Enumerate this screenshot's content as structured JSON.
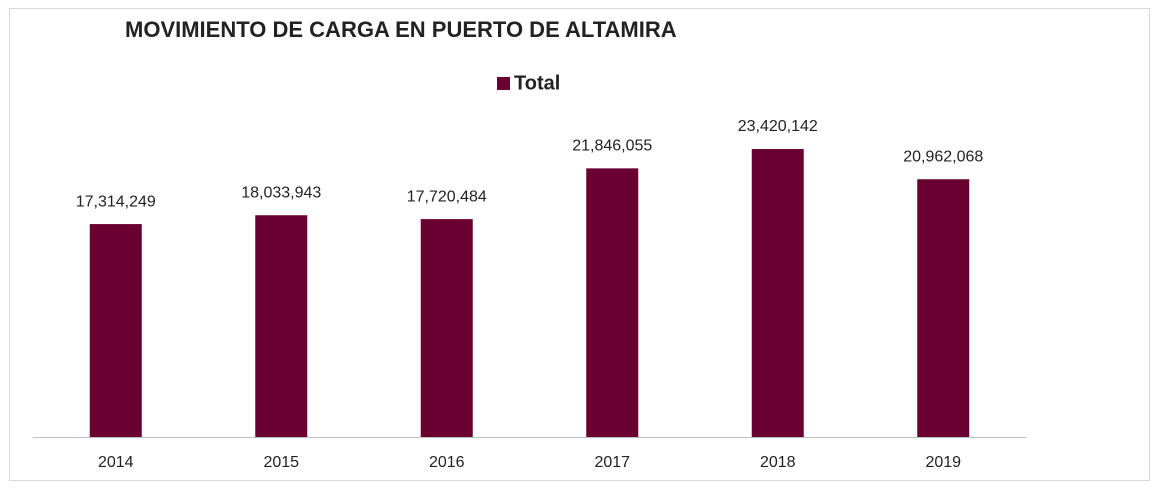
{
  "chart_data": {
    "type": "bar",
    "title": "MOVIMIENTO DE CARGA EN PUERTO DE ALTAMIRA",
    "categories": [
      "2014",
      "2015",
      "2016",
      "2017",
      "2018",
      "2019"
    ],
    "series": [
      {
        "name": "Total",
        "color": "#6a0032",
        "values": [
          17314249,
          18033943,
          17720484,
          21846055,
          23420142,
          20962068
        ],
        "value_labels": [
          "17,314,249",
          "18,033,943",
          "17,720,484",
          "21,846,055",
          "23,420,142",
          "20,962,068"
        ]
      }
    ],
    "legend": "top"
  }
}
